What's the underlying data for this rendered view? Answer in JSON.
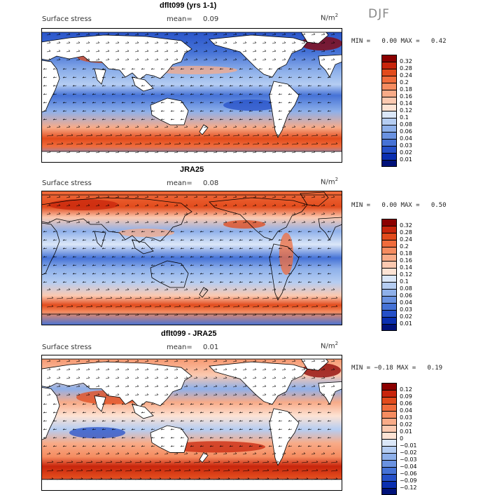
{
  "season": "DJF",
  "units": "N/m",
  "units_sup": "2",
  "panels": [
    {
      "title": "dflt099 (yrs 1-1)",
      "variable": "Surface stress",
      "mean_label": "mean=",
      "mean_value": "0.09",
      "min_label": "MIN =",
      "min_value": "0.00",
      "max_label": "MAX =",
      "max_value": "0.42",
      "levels": [
        "0.32",
        "0.28",
        "0.24",
        "0.2",
        "0.18",
        "0.16",
        "0.14",
        "0.12",
        "0.1",
        "0.08",
        "0.06",
        "0.04",
        "0.03",
        "0.02",
        "0.01"
      ],
      "colors": [
        "#8b0000",
        "#c8250c",
        "#e24b1c",
        "#f06c3c",
        "#f58c60",
        "#f8ab88",
        "#fbc9b0",
        "#fde3d4",
        "#dbe7f8",
        "#b5cdf2",
        "#8eb0ea",
        "#6a92e1",
        "#4572d6",
        "#2550c8",
        "#0a2fb0",
        "#00127a"
      ]
    },
    {
      "title": "JRA25",
      "variable": "Surface stress",
      "mean_label": "mean=",
      "mean_value": "0.08",
      "min_label": "MIN =",
      "min_value": "0.00",
      "max_label": "MAX =",
      "max_value": "0.50",
      "levels": [
        "0.32",
        "0.28",
        "0.24",
        "0.2",
        "0.18",
        "0.16",
        "0.14",
        "0.12",
        "0.1",
        "0.08",
        "0.06",
        "0.04",
        "0.03",
        "0.02",
        "0.01"
      ],
      "colors": [
        "#8b0000",
        "#c8250c",
        "#e24b1c",
        "#f06c3c",
        "#f58c60",
        "#f8ab88",
        "#fbc9b0",
        "#fde3d4",
        "#dbe7f8",
        "#b5cdf2",
        "#8eb0ea",
        "#6a92e1",
        "#4572d6",
        "#2550c8",
        "#0a2fb0",
        "#00127a"
      ]
    },
    {
      "title": "dflt099 - JRA25",
      "variable": "Surface stress",
      "mean_label": "mean=",
      "mean_value": "0.01",
      "min_label": "MIN =",
      "min_value": "−0.18",
      "max_label": "MAX =",
      "max_value": "0.19",
      "levels": [
        "0.12",
        "0.09",
        "0.06",
        "0.04",
        "0.03",
        "0.02",
        "0.01",
        "0",
        "−0.01",
        "−0.02",
        "−0.03",
        "−0.04",
        "−0.06",
        "−0.09",
        "−0.12"
      ],
      "colors": [
        "#8b0000",
        "#c8250c",
        "#e24b1c",
        "#f06c3c",
        "#f58c60",
        "#f8ab88",
        "#fbc9b0",
        "#fde3d4",
        "#dbe7f8",
        "#b5cdf2",
        "#8eb0ea",
        "#6a92e1",
        "#4572d6",
        "#2550c8",
        "#0a2fb0",
        "#00127a"
      ]
    }
  ]
}
